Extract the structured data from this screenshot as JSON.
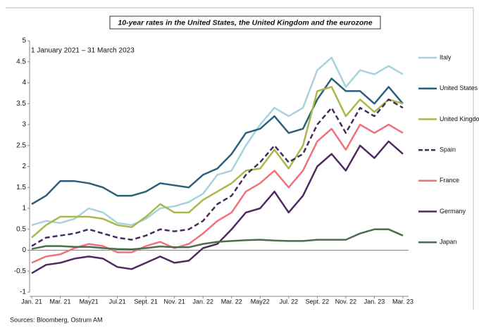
{
  "chart_data": {
    "type": "line",
    "title": "10-year rates in the United States, the United Kingdom and the eurozone",
    "subtitle": "1 January 2021 – 31 March 2023",
    "source": "Sources: Bloomberg, Ostrum AM",
    "categories": [
      "Jan. 21",
      null,
      "Mar. 21",
      null,
      "May21",
      null,
      "Jul.21",
      null,
      "Sept. 21",
      null,
      "Nov. 21",
      null,
      "Jan. 22",
      null,
      "Mar. 22",
      null,
      "May22",
      null,
      "Jul. 22",
      null,
      "Sept. 22",
      null,
      "Nov. 22",
      null,
      "Jan. 23",
      null,
      "Mar. 23"
    ],
    "ylim": [
      -1,
      5
    ],
    "yticks": [
      -1,
      -0.5,
      0,
      0.5,
      1,
      1.5,
      2,
      2.5,
      3,
      3.5,
      4,
      4.5,
      5
    ],
    "series": [
      {
        "name": "Italy",
        "color": "#a6d2df",
        "values": [
          0.6,
          0.7,
          0.65,
          0.75,
          1.0,
          0.9,
          0.65,
          0.6,
          0.75,
          1.0,
          1.05,
          1.15,
          1.35,
          1.8,
          1.9,
          2.5,
          3.0,
          3.4,
          3.2,
          3.4,
          4.3,
          4.6,
          3.9,
          4.3,
          4.2,
          4.4,
          4.2
        ]
      },
      {
        "name": "United States",
        "color": "#2b6079",
        "values": [
          1.1,
          1.3,
          1.65,
          1.65,
          1.6,
          1.5,
          1.3,
          1.3,
          1.4,
          1.6,
          1.55,
          1.5,
          1.8,
          1.95,
          2.3,
          2.8,
          2.9,
          3.2,
          2.8,
          2.9,
          3.6,
          4.1,
          3.8,
          3.8,
          3.5,
          3.9,
          3.5
        ]
      },
      {
        "name": "United Kingdom",
        "color": "#a9b84b",
        "values": [
          0.3,
          0.6,
          0.8,
          0.8,
          0.8,
          0.75,
          0.6,
          0.55,
          0.8,
          1.1,
          0.9,
          0.9,
          1.2,
          1.4,
          1.6,
          1.9,
          1.95,
          2.4,
          1.95,
          2.5,
          3.8,
          3.9,
          3.2,
          3.6,
          3.3,
          3.6,
          3.5
        ]
      },
      {
        "name": "Spain",
        "color": "#4a2b5e",
        "dashed": true,
        "values": [
          0.1,
          0.3,
          0.35,
          0.4,
          0.5,
          0.4,
          0.3,
          0.25,
          0.35,
          0.5,
          0.45,
          0.5,
          0.7,
          1.1,
          1.3,
          1.8,
          2.1,
          2.5,
          2.1,
          2.3,
          3.0,
          3.4,
          2.8,
          3.4,
          3.2,
          3.6,
          3.4
        ]
      },
      {
        "name": "France",
        "color": "#f0717a",
        "values": [
          -0.3,
          -0.15,
          -0.1,
          0.05,
          0.15,
          0.1,
          -0.05,
          -0.05,
          0.1,
          0.2,
          0.05,
          0.15,
          0.4,
          0.7,
          0.9,
          1.4,
          1.6,
          1.9,
          1.5,
          1.9,
          2.6,
          2.9,
          2.4,
          3.0,
          2.8,
          3.0,
          2.8
        ]
      },
      {
        "name": "Germany",
        "color": "#4f2a62",
        "values": [
          -0.55,
          -0.35,
          -0.3,
          -0.2,
          -0.15,
          -0.2,
          -0.4,
          -0.45,
          -0.3,
          -0.15,
          -0.3,
          -0.25,
          0.05,
          0.15,
          0.5,
          0.9,
          1.0,
          1.4,
          0.9,
          1.3,
          2.0,
          2.3,
          1.9,
          2.5,
          2.2,
          2.6,
          2.3
        ]
      },
      {
        "name": "Japan",
        "color": "#4b6d4b",
        "values": [
          0.03,
          0.1,
          0.1,
          0.08,
          0.08,
          0.05,
          0.03,
          0.02,
          0.05,
          0.09,
          0.07,
          0.07,
          0.15,
          0.2,
          0.22,
          0.24,
          0.25,
          0.23,
          0.22,
          0.22,
          0.25,
          0.25,
          0.25,
          0.4,
          0.5,
          0.5,
          0.35
        ]
      }
    ]
  }
}
